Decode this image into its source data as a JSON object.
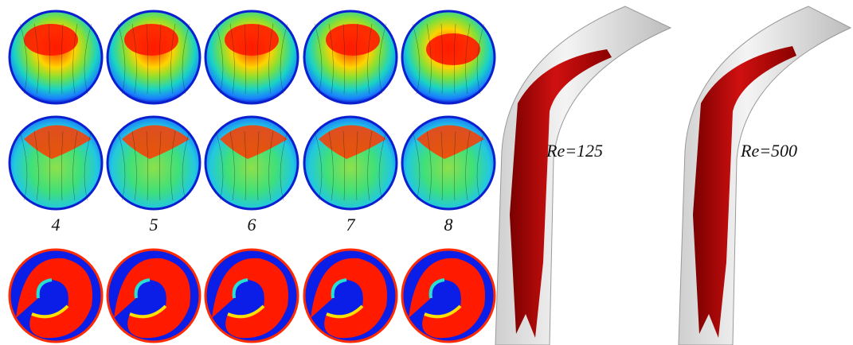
{
  "labels": [
    "4",
    "5",
    "6",
    "7",
    "8"
  ],
  "annotations": [
    "Re=125",
    "Re=500"
  ]
}
